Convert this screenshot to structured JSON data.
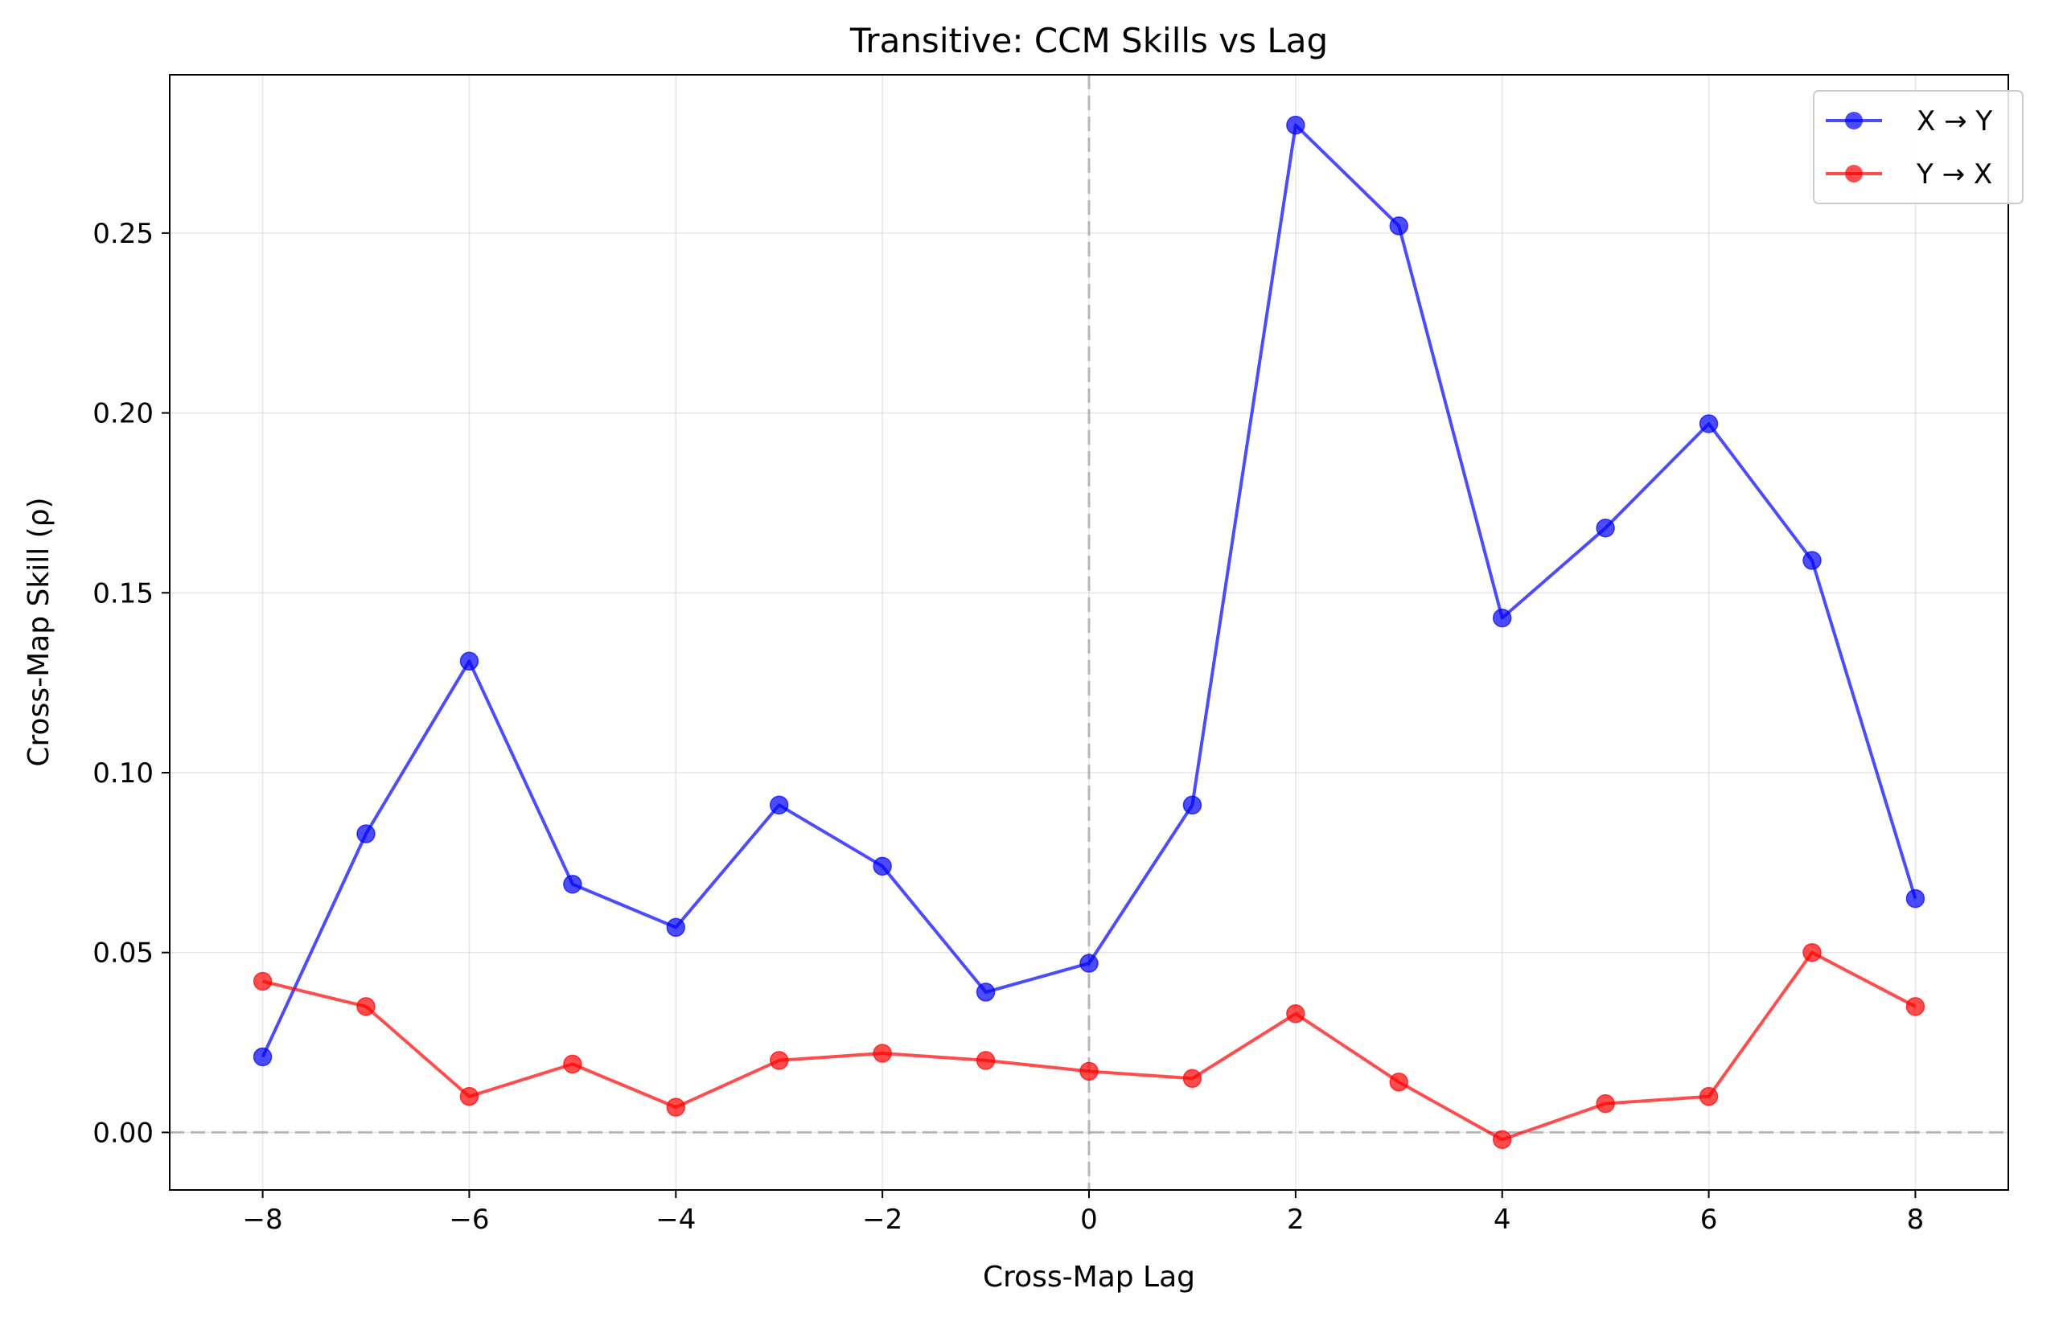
{
  "chart_data": {
    "type": "line",
    "title": "Transitive: CCM Skills vs Lag",
    "xlabel": "Cross-Map Lag",
    "ylabel": "Cross-Map Skill (ρ)",
    "xlim": [
      -8.9,
      8.9
    ],
    "ylim": [
      -0.016,
      0.294
    ],
    "xticks": [
      -8,
      -6,
      -4,
      -2,
      0,
      2,
      4,
      6,
      8
    ],
    "xtick_labels": [
      "−8",
      "−6",
      "−4",
      "−2",
      "0",
      "2",
      "4",
      "6",
      "8"
    ],
    "yticks": [
      0.0,
      0.05,
      0.1,
      0.15,
      0.2,
      0.25
    ],
    "ytick_labels": [
      "0.00",
      "0.05",
      "0.10",
      "0.15",
      "0.20",
      "0.25"
    ],
    "grid": true,
    "reference_lines": {
      "x": 0,
      "y": 0
    },
    "legend_position": "top-right",
    "x": [
      -8,
      -7,
      -6,
      -5,
      -4,
      -3,
      -2,
      -1,
      0,
      1,
      2,
      3,
      4,
      5,
      6,
      7,
      8
    ],
    "series": [
      {
        "name": "X → Y",
        "color": "#0000ff",
        "values": [
          0.021,
          0.083,
          0.131,
          0.069,
          0.057,
          0.091,
          0.074,
          0.039,
          0.047,
          0.091,
          0.28,
          0.252,
          0.143,
          0.168,
          0.197,
          0.159,
          0.065
        ]
      },
      {
        "name": "Y → X",
        "color": "#ff0000",
        "values": [
          0.042,
          0.035,
          0.01,
          0.019,
          0.007,
          0.02,
          0.022,
          0.02,
          0.017,
          0.015,
          0.033,
          0.014,
          -0.002,
          0.008,
          0.01,
          0.05,
          0.035
        ]
      }
    ]
  }
}
